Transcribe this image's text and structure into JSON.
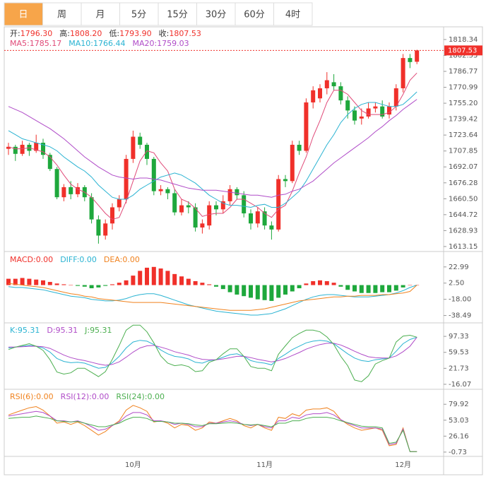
{
  "tabs": {
    "items": [
      "日",
      "周",
      "月",
      "5分",
      "15分",
      "30分",
      "60分",
      "4时"
    ],
    "selected": 0
  },
  "chart_data": [
    {
      "type": "candlestick",
      "info": [
        {
          "name": "开:",
          "label": "1796.30"
        },
        {
          "name": "高:",
          "label": "1808.20"
        },
        {
          "name": "低:",
          "label": "1793.90"
        },
        {
          "name": "收:",
          "label": "1807.53"
        }
      ],
      "categories": [
        null,
        null,
        null,
        null,
        null,
        null,
        null,
        null,
        null,
        null,
        null,
        null,
        null,
        null,
        null,
        null,
        null,
        null,
        "10月",
        null,
        null,
        null,
        null,
        null,
        null,
        null,
        null,
        null,
        null,
        null,
        null,
        null,
        null,
        null,
        null,
        null,
        null,
        "11月",
        null,
        null,
        null,
        null,
        null,
        null,
        null,
        null,
        null,
        null,
        null,
        null,
        null,
        null,
        null,
        null,
        null,
        null,
        null,
        "12月",
        null,
        null
      ],
      "open": [
        1710,
        1712,
        1705,
        1714,
        1708,
        1716,
        1704,
        1690,
        1662,
        1672,
        1665,
        1672,
        1662,
        1640,
        1624,
        1636,
        1652,
        1660,
        1700,
        1722,
        1714,
        1700,
        1668,
        1670,
        1666,
        1647,
        1654,
        1652,
        1632,
        1634,
        1654,
        1650,
        1658,
        1670,
        1664,
        1646,
        1636,
        1648,
        1634,
        1630,
        1680,
        1678,
        1714,
        1708,
        1756,
        1760,
        1770,
        1776,
        1772,
        1758,
        1748,
        1740,
        1742,
        1750,
        1752,
        1744,
        1752,
        1770,
        1800,
        1796.3
      ],
      "high": [
        1716,
        1714,
        1718,
        1716,
        1724,
        1720,
        1706,
        1692,
        1675,
        1678,
        1676,
        1674,
        1666,
        1644,
        1640,
        1656,
        1664,
        1704,
        1728,
        1726,
        1716,
        1702,
        1674,
        1672,
        1670,
        1660,
        1658,
        1656,
        1640,
        1658,
        1658,
        1664,
        1674,
        1672,
        1668,
        1650,
        1652,
        1652,
        1638,
        1684,
        1684,
        1718,
        1718,
        1760,
        1772,
        1774,
        1786,
        1784,
        1776,
        1762,
        1752,
        1750,
        1756,
        1756,
        1758,
        1756,
        1774,
        1804,
        1804,
        1808.2
      ],
      "low": [
        1704,
        1698,
        1703,
        1703,
        1706,
        1700,
        1688,
        1660,
        1658,
        1660,
        1662,
        1658,
        1636,
        1616,
        1620,
        1630,
        1648,
        1656,
        1696,
        1710,
        1694,
        1664,
        1664,
        1660,
        1644,
        1644,
        1646,
        1628,
        1626,
        1630,
        1644,
        1646,
        1654,
        1660,
        1642,
        1630,
        1632,
        1630,
        1620,
        1628,
        1672,
        1676,
        1704,
        1706,
        1750,
        1756,
        1764,
        1768,
        1754,
        1740,
        1734,
        1734,
        1740,
        1746,
        1740,
        1740,
        1748,
        1766,
        1790,
        1793.9
      ],
      "close": [
        1712,
        1705,
        1714,
        1708,
        1716,
        1704,
        1690,
        1662,
        1672,
        1665,
        1672,
        1662,
        1640,
        1624,
        1636,
        1652,
        1660,
        1700,
        1722,
        1714,
        1700,
        1668,
        1670,
        1666,
        1647,
        1654,
        1652,
        1632,
        1636,
        1654,
        1650,
        1658,
        1670,
        1664,
        1646,
        1636,
        1648,
        1634,
        1630,
        1680,
        1678,
        1714,
        1708,
        1756,
        1768,
        1770,
        1778,
        1772,
        1758,
        1748,
        1738,
        1742,
        1750,
        1752,
        1742,
        1752,
        1770,
        1800,
        1796,
        1807.53
      ],
      "up_color": "#f0302a",
      "down_color": "#1ea83c",
      "series": [
        {
          "name": "MA5:",
          "label": "1785.17",
          "color": "#e04a78",
          "values": [
            1712,
            1710,
            1710,
            1711,
            1709,
            1707,
            1702,
            1694,
            1684,
            1675,
            1670,
            1667,
            1662,
            1654,
            1646,
            1640,
            1642,
            1658,
            1678,
            1698,
            1708,
            1706,
            1696,
            1688,
            1670,
            1660,
            1657,
            1651,
            1643,
            1645,
            1646,
            1646,
            1652,
            1660,
            1660,
            1656,
            1652,
            1646,
            1642,
            1650,
            1654,
            1668,
            1686,
            1702,
            1722,
            1738,
            1756,
            1768,
            1768,
            1764,
            1756,
            1748,
            1744,
            1744,
            1744,
            1746,
            1752,
            1764,
            1778,
            1785.17
          ]
        },
        {
          "name": "MA10:",
          "label": "1766.44",
          "color": "#2ab3d2",
          "values": [
            1728,
            1724,
            1720,
            1718,
            1716,
            1714,
            1712,
            1708,
            1702,
            1697,
            1692,
            1688,
            1682,
            1674,
            1668,
            1662,
            1660,
            1660,
            1664,
            1670,
            1674,
            1678,
            1682,
            1684,
            1686,
            1684,
            1680,
            1676,
            1670,
            1664,
            1660,
            1656,
            1654,
            1654,
            1653,
            1652,
            1654,
            1655,
            1652,
            1652,
            1656,
            1662,
            1668,
            1678,
            1690,
            1702,
            1714,
            1724,
            1736,
            1744,
            1750,
            1754,
            1756,
            1756,
            1754,
            1752,
            1752,
            1754,
            1760,
            1766.44
          ]
        },
        {
          "name": "MA20:",
          "label": "1759.03",
          "color": "#b04cc8",
          "values": [
            1752,
            1749,
            1746,
            1742,
            1738,
            1734,
            1730,
            1725,
            1720,
            1714,
            1708,
            1702,
            1697,
            1692,
            1688,
            1684,
            1682,
            1681,
            1680,
            1681,
            1681,
            1680,
            1679,
            1677,
            1675,
            1673,
            1671,
            1670,
            1669,
            1669,
            1669,
            1668,
            1667,
            1666,
            1665,
            1664,
            1664,
            1663,
            1662,
            1664,
            1665,
            1668,
            1670,
            1674,
            1678,
            1684,
            1690,
            1696,
            1701,
            1706,
            1711,
            1716,
            1721,
            1727,
            1732,
            1738,
            1743,
            1749,
            1754,
            1759.03
          ]
        }
      ],
      "ylim": [
        1608.9,
        1828.1
      ],
      "yticks": [
        1818.34,
        1802.55,
        1786.77,
        1770.99,
        {
          "value": 1755.2,
          "label": "1755.20"
        },
        1739.42,
        1723.64,
        1707.85,
        1692.07,
        1676.28,
        {
          "value": 1660.5,
          "label": "1660.50"
        },
        1644.72,
        1628.93,
        1613.15
      ]
    },
    {
      "type": "macd",
      "up_color": "#f0302a",
      "down_color": "#1ea83c",
      "series": [
        {
          "name": "MACD:",
          "label": "0.00",
          "color": "#f0302a",
          "kind": "bar",
          "values": [
            8,
            8,
            9,
            8,
            7,
            6,
            4,
            2,
            1,
            0,
            -1,
            -2,
            -4,
            -3,
            -1,
            1,
            3,
            6,
            12,
            18,
            22,
            23,
            21,
            18,
            14,
            11,
            8,
            5,
            3,
            1,
            -2,
            -5,
            -9,
            -12,
            -14,
            -16,
            -18,
            -19,
            -20,
            -16,
            -12,
            -8,
            -4,
            2,
            5,
            6,
            5,
            3,
            -2,
            -6,
            -8,
            -10,
            -10,
            -10,
            -9,
            -9,
            -7,
            -3,
            0,
            0
          ]
        },
        {
          "name": "DIFF:",
          "label": "0.00",
          "color": "#2ab3d2",
          "kind": "line",
          "values": [
            -2,
            -3,
            -3,
            -4,
            -5,
            -6,
            -8,
            -10,
            -12,
            -14,
            -15,
            -16,
            -18,
            -19,
            -20,
            -20,
            -19,
            -17,
            -14,
            -12,
            -11,
            -11,
            -13,
            -16,
            -19,
            -22,
            -25,
            -27,
            -29,
            -31,
            -33,
            -34,
            -35,
            -36,
            -37,
            -38,
            -38,
            -37,
            -36,
            -33,
            -30,
            -26,
            -22,
            -18,
            -15,
            -13,
            -12,
            -12,
            -13,
            -14,
            -15,
            -15,
            -15,
            -14,
            -13,
            -12,
            -10,
            -7,
            -3,
            0
          ]
        },
        {
          "name": "DEA:",
          "label": "0.00",
          "color": "#f0821e",
          "kind": "line",
          "values": [
            2,
            1,
            0,
            -1,
            -2,
            -3,
            -5,
            -7,
            -9,
            -11,
            -12,
            -14,
            -15,
            -17,
            -18,
            -19,
            -20,
            -21,
            -22,
            -22,
            -22,
            -22,
            -22,
            -23,
            -24,
            -25,
            -26,
            -27,
            -28,
            -29,
            -30,
            -31,
            -32,
            -32,
            -32,
            -32,
            -31,
            -30,
            -28,
            -26,
            -24,
            -22,
            -20,
            -19,
            -18,
            -17,
            -16,
            -15,
            -15,
            -14,
            -14,
            -13,
            -13,
            -13,
            -12,
            -12,
            -11,
            -10,
            -8,
            0
          ]
        }
      ],
      "ylim": [
        -46.9,
        40.7
      ],
      "yticks": [
        22.99,
        {
          "value": 2.5,
          "label": "2.50"
        },
        {
          "value": -18,
          "label": "-18.00"
        },
        -38.49
      ]
    },
    {
      "type": "line",
      "series": [
        {
          "name": "K:",
          "label": "95.31",
          "color": "#2ab3d2",
          "values": [
            70,
            72,
            74,
            76,
            74,
            70,
            60,
            45,
            38,
            35,
            36,
            34,
            28,
            22,
            24,
            35,
            50,
            70,
            84,
            88,
            86,
            78,
            65,
            56,
            50,
            48,
            44,
            36,
            34,
            40,
            42,
            48,
            54,
            56,
            50,
            40,
            36,
            34,
            30,
            45,
            55,
            66,
            74,
            82,
            86,
            88,
            86,
            80,
            68,
            56,
            46,
            40,
            38,
            42,
            44,
            46,
            62,
            80,
            90,
            95.31
          ]
        },
        {
          "name": "D:",
          "label": "95.31",
          "color": "#b04cc8",
          "values": [
            72,
            72,
            73,
            74,
            74,
            73,
            69,
            61,
            53,
            47,
            43,
            40,
            36,
            32,
            29,
            31,
            37,
            48,
            60,
            70,
            75,
            76,
            72,
            67,
            61,
            57,
            53,
            47,
            43,
            42,
            42,
            44,
            47,
            50,
            50,
            47,
            43,
            40,
            37,
            40,
            45,
            52,
            59,
            67,
            73,
            78,
            81,
            81,
            77,
            70,
            62,
            55,
            49,
            47,
            46,
            46,
            51,
            61,
            74,
            95.31
          ]
        },
        {
          "name": "J:",
          "label": "95.31",
          "color": "#4caf50",
          "values": [
            66,
            72,
            76,
            80,
            74,
            64,
            42,
            13,
            8,
            11,
            22,
            22,
            12,
            2,
            14,
            43,
            76,
            112,
            124,
            124,
            108,
            82,
            51,
            34,
            28,
            30,
            26,
            14,
            16,
            36,
            42,
            56,
            68,
            68,
            50,
            26,
            22,
            22,
            16,
            55,
            75,
            94,
            104,
            112,
            112,
            108,
            96,
            78,
            50,
            28,
            -6,
            -10,
            4,
            32,
            40,
            46,
            84,
            98,
            100,
            95.31
          ]
        }
      ],
      "ylim": [
        -26.2,
        127.6
      ],
      "yticks": [
        97.33,
        59.53,
        21.73,
        -16.07
      ]
    },
    {
      "type": "line",
      "series": [
        {
          "name": "RSI(6):",
          "label": "0.00",
          "color": "#f0821e",
          "values": [
            62,
            66,
            70,
            74,
            76,
            70,
            60,
            48,
            50,
            46,
            50,
            44,
            36,
            28,
            34,
            44,
            52,
            70,
            78,
            74,
            68,
            50,
            52,
            48,
            40,
            46,
            44,
            36,
            40,
            50,
            48,
            52,
            56,
            52,
            44,
            40,
            46,
            40,
            36,
            58,
            56,
            64,
            60,
            70,
            72,
            72,
            74,
            68,
            54,
            46,
            40,
            36,
            38,
            40,
            36,
            10,
            12,
            40,
            0,
            0
          ]
        },
        {
          "name": "RSI(12):",
          "label": "0.00",
          "color": "#b04cc8",
          "values": [
            60,
            62,
            64,
            66,
            68,
            66,
            60,
            52,
            52,
            50,
            52,
            48,
            42,
            36,
            38,
            44,
            50,
            60,
            66,
            66,
            62,
            52,
            52,
            50,
            46,
            48,
            46,
            42,
            42,
            48,
            48,
            50,
            52,
            50,
            46,
            44,
            46,
            42,
            40,
            52,
            52,
            58,
            56,
            62,
            64,
            64,
            66,
            62,
            54,
            48,
            44,
            40,
            40,
            40,
            38,
            12,
            14,
            38,
            0,
            0
          ]
        },
        {
          "name": "RSI(24):",
          "label": "0.00",
          "color": "#4caf50",
          "values": [
            56,
            57,
            58,
            58,
            60,
            58,
            56,
            52,
            51,
            50,
            51,
            48,
            45,
            42,
            42,
            45,
            48,
            54,
            58,
            58,
            56,
            51,
            51,
            50,
            48,
            48,
            47,
            45,
            44,
            47,
            47,
            48,
            49,
            48,
            46,
            45,
            46,
            44,
            42,
            48,
            48,
            52,
            52,
            56,
            58,
            58,
            58,
            56,
            52,
            49,
            46,
            43,
            42,
            42,
            40,
            14,
            16,
            36,
            0,
            0
          ]
        }
      ],
      "ylim": [
        -6.8,
        104
      ],
      "yticks": [
        79.92,
        53.03,
        26.16,
        -0.73
      ]
    }
  ]
}
